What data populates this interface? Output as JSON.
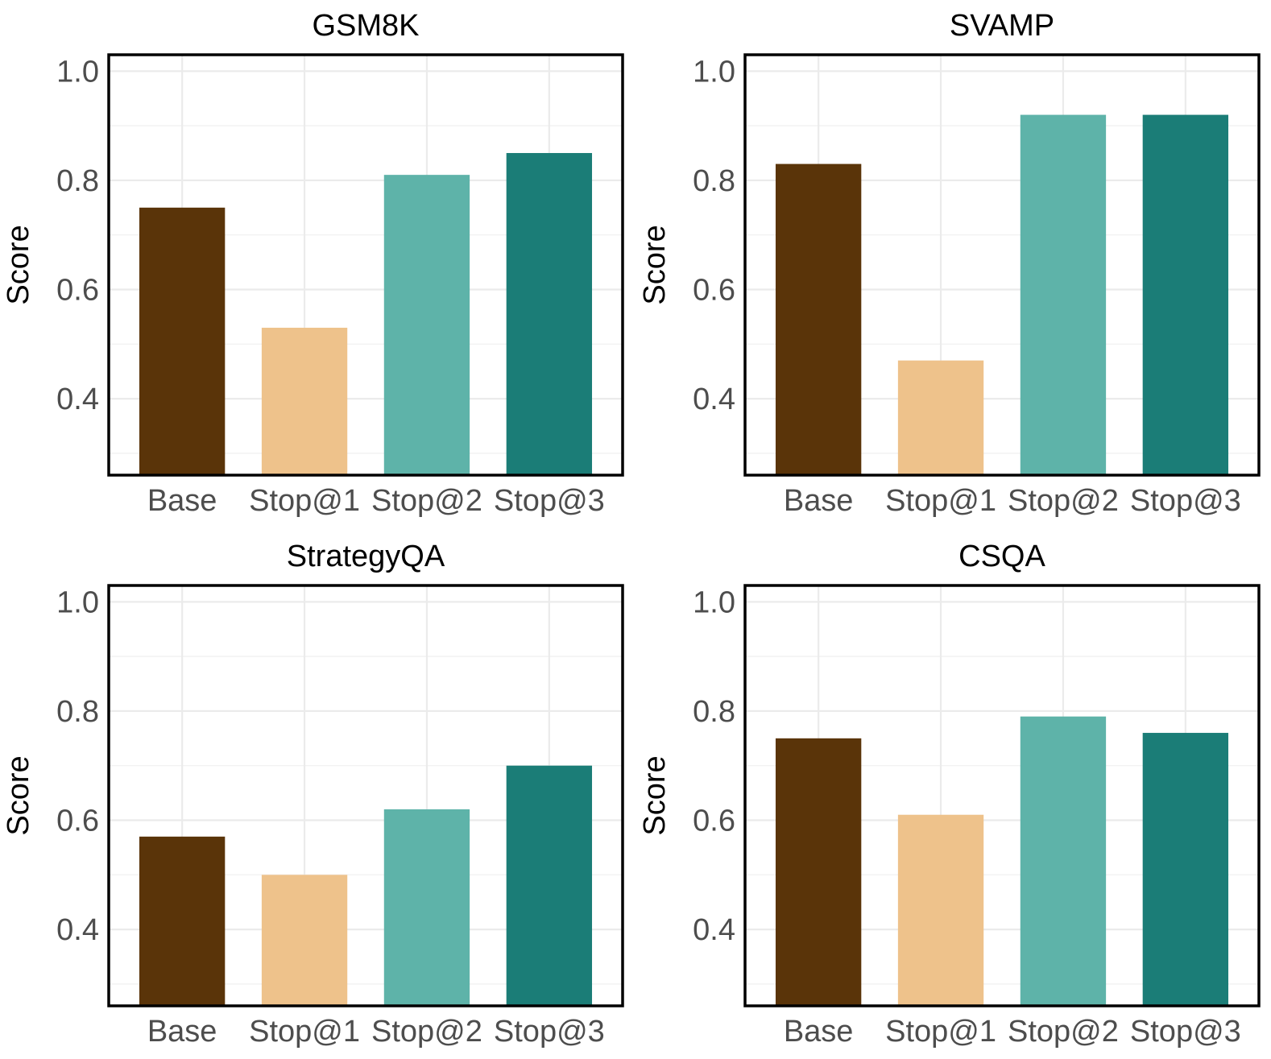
{
  "chart_data": [
    {
      "type": "bar",
      "title": "GSM8K",
      "ylabel": "Score",
      "xlabel": "",
      "categories": [
        "Base",
        "Stop@1",
        "Stop@2",
        "Stop@3"
      ],
      "values": [
        0.75,
        0.53,
        0.81,
        0.85
      ],
      "ylim": [
        0.26,
        1.03
      ],
      "yticks": [
        "0.4",
        "0.6",
        "0.8",
        "1.0"
      ],
      "colors": [
        "#5a3409",
        "#eec28b",
        "#5eb3a9",
        "#1b7d77"
      ]
    },
    {
      "type": "bar",
      "title": "SVAMP",
      "ylabel": "Score",
      "xlabel": "",
      "categories": [
        "Base",
        "Stop@1",
        "Stop@2",
        "Stop@3"
      ],
      "values": [
        0.83,
        0.47,
        0.92,
        0.92
      ],
      "ylim": [
        0.26,
        1.03
      ],
      "yticks": [
        "0.4",
        "0.6",
        "0.8",
        "1.0"
      ],
      "colors": [
        "#5a3409",
        "#eec28b",
        "#5eb3a9",
        "#1b7d77"
      ]
    },
    {
      "type": "bar",
      "title": "StrategyQA",
      "ylabel": "Score",
      "xlabel": "",
      "categories": [
        "Base",
        "Stop@1",
        "Stop@2",
        "Stop@3"
      ],
      "values": [
        0.57,
        0.5,
        0.62,
        0.7
      ],
      "ylim": [
        0.26,
        1.03
      ],
      "yticks": [
        "0.4",
        "0.6",
        "0.8",
        "1.0"
      ],
      "colors": [
        "#5a3409",
        "#eec28b",
        "#5eb3a9",
        "#1b7d77"
      ]
    },
    {
      "type": "bar",
      "title": "CSQA",
      "ylabel": "Score",
      "xlabel": "",
      "categories": [
        "Base",
        "Stop@1",
        "Stop@2",
        "Stop@3"
      ],
      "values": [
        0.75,
        0.61,
        0.79,
        0.76
      ],
      "ylim": [
        0.26,
        1.03
      ],
      "yticks": [
        "0.4",
        "0.6",
        "0.8",
        "1.0"
      ],
      "colors": [
        "#5a3409",
        "#eec28b",
        "#5eb3a9",
        "#1b7d77"
      ]
    }
  ]
}
